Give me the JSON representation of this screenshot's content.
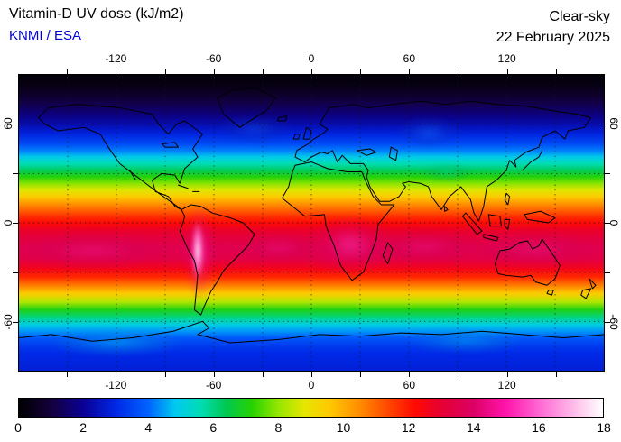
{
  "header": {
    "title": "Vitamin-D UV dose (kJ/m2)",
    "credit": "KNMI / ESA",
    "scene": "Clear-sky",
    "date": "22 February 2025"
  },
  "colors": {
    "credit_blue": "#0000dd",
    "text_black": "#000000",
    "background": "#ffffff"
  },
  "map_axes": {
    "lon_tick_step_deg": 30,
    "lon_labeled_ticks": [
      -120,
      -60,
      0,
      60,
      120
    ],
    "lat_tick_step_deg": 30,
    "lat_labeled_ticks": [
      60,
      0,
      -60
    ]
  },
  "chart_data": {
    "type": "heatmap",
    "title": "Vitamin-D UV dose (kJ/m2)",
    "source": "KNMI / ESA",
    "condition": "Clear-sky",
    "date": "22 February 2025",
    "units": "kJ/m2",
    "projection": "equirectangular",
    "lon_range": [
      -180,
      180
    ],
    "lat_range": [
      -90,
      90
    ],
    "grid_step_deg": 30,
    "colorbar": {
      "min": 0,
      "max": 18,
      "tick_labels": [
        0,
        2,
        4,
        6,
        8,
        10,
        12,
        14,
        16,
        18
      ],
      "stops": [
        {
          "value": 0,
          "color": "#000000"
        },
        {
          "value": 1,
          "color": "#14003c"
        },
        {
          "value": 2,
          "color": "#0a0096"
        },
        {
          "value": 3,
          "color": "#0028e6"
        },
        {
          "value": 4,
          "color": "#0064ff"
        },
        {
          "value": 4.8,
          "color": "#00c8f0"
        },
        {
          "value": 5.6,
          "color": "#00dcb4"
        },
        {
          "value": 6.4,
          "color": "#00c850"
        },
        {
          "value": 7.2,
          "color": "#28d200"
        },
        {
          "value": 8,
          "color": "#96e600"
        },
        {
          "value": 8.8,
          "color": "#e6e600"
        },
        {
          "value": 9.6,
          "color": "#ffc800"
        },
        {
          "value": 10.5,
          "color": "#ff8c00"
        },
        {
          "value": 11.4,
          "color": "#ff4600"
        },
        {
          "value": 12.2,
          "color": "#ff0a00"
        },
        {
          "value": 13,
          "color": "#e60032"
        },
        {
          "value": 14,
          "color": "#dc0064"
        },
        {
          "value": 15,
          "color": "#ff14aa"
        },
        {
          "value": 16,
          "color": "#ff64d2"
        },
        {
          "value": 17,
          "color": "#ffb4e6"
        },
        {
          "value": 18,
          "color": "#ffffff"
        }
      ]
    },
    "zonal_mean_profile": [
      {
        "lat": 90,
        "dose": 0.15
      },
      {
        "lat": 84,
        "dose": 0.3
      },
      {
        "lat": 78,
        "dose": 0.7
      },
      {
        "lat": 72,
        "dose": 1.2
      },
      {
        "lat": 66,
        "dose": 1.7
      },
      {
        "lat": 60,
        "dose": 2.3
      },
      {
        "lat": 54,
        "dose": 2.9
      },
      {
        "lat": 48,
        "dose": 3.6
      },
      {
        "lat": 44,
        "dose": 4.2
      },
      {
        "lat": 40,
        "dose": 4.9
      },
      {
        "lat": 36,
        "dose": 5.6
      },
      {
        "lat": 32,
        "dose": 6.3
      },
      {
        "lat": 28,
        "dose": 7.1
      },
      {
        "lat": 24,
        "dose": 7.9
      },
      {
        "lat": 20,
        "dose": 8.7
      },
      {
        "lat": 16,
        "dose": 9.5
      },
      {
        "lat": 12,
        "dose": 10.3
      },
      {
        "lat": 8,
        "dose": 11.0
      },
      {
        "lat": 4,
        "dose": 11.7
      },
      {
        "lat": 0,
        "dose": 12.3
      },
      {
        "lat": -5,
        "dose": 12.9
      },
      {
        "lat": -10,
        "dose": 13.3
      },
      {
        "lat": -16,
        "dose": 13.6
      },
      {
        "lat": -22,
        "dose": 13.4
      },
      {
        "lat": -28,
        "dose": 12.6
      },
      {
        "lat": -33,
        "dose": 11.8
      },
      {
        "lat": -38,
        "dose": 10.7
      },
      {
        "lat": -43,
        "dose": 9.5
      },
      {
        "lat": -48,
        "dose": 8.3
      },
      {
        "lat": -53,
        "dose": 7.0
      },
      {
        "lat": -58,
        "dose": 5.9
      },
      {
        "lat": -62,
        "dose": 5.0
      },
      {
        "lat": -66,
        "dose": 4.4
      },
      {
        "lat": -70,
        "dose": 3.8
      },
      {
        "lat": -75,
        "dose": 3.3
      },
      {
        "lat": -80,
        "dose": 3.0
      },
      {
        "lat": -85,
        "dose": 2.9
      },
      {
        "lat": -90,
        "dose": 2.8
      }
    ],
    "hotspots": [
      {
        "name": "andes-glow",
        "lon": -69,
        "lat": -18,
        "dose": 15,
        "w": 38,
        "h": 105,
        "core": "#ff3cb490",
        "glow": "#e60a7850"
      },
      {
        "name": "andes-altiplano-peak",
        "lon": -70,
        "lat": -17,
        "dose": 17.5,
        "w": 13,
        "h": 68,
        "core": "#ffffffe0",
        "glow": "#ff82dcb0"
      },
      {
        "name": "southern-africa",
        "lon": 24,
        "lat": -13,
        "dose": 15,
        "w": 95,
        "h": 68,
        "core": "#f028a0a0",
        "glow": "#dc006455"
      },
      {
        "name": "south-pacific-band",
        "lon": -135,
        "lat": -17,
        "dose": 14.5,
        "w": 170,
        "h": 44,
        "core": "#e6148085",
        "glow": "#d2005a4d"
      },
      {
        "name": "south-atlantic-band",
        "lon": -20,
        "lat": -15,
        "dose": 14,
        "w": 90,
        "h": 36,
        "core": "#e6148070",
        "glow": "#d2005a45"
      },
      {
        "name": "indian-ocean-band",
        "lon": 70,
        "lat": -14,
        "dose": 14,
        "w": 120,
        "h": 38,
        "core": "#e6148078",
        "glow": "#d2005a48"
      },
      {
        "name": "north-australia-band",
        "lon": 138,
        "lat": -16,
        "dose": 14.5,
        "w": 130,
        "h": 44,
        "core": "#e6148085",
        "glow": "#d2005a4d"
      },
      {
        "name": "tibet-himalaya",
        "lon": 84,
        "lat": 31,
        "dose": 7.5,
        "w": 56,
        "h": 22,
        "core": "#00d29670",
        "glow": "#00aa6440"
      },
      {
        "name": "central-asia-bright",
        "lon": 72,
        "lat": 55,
        "dose": 3.5,
        "w": 75,
        "h": 36,
        "core": "#1464f080",
        "glow": "#0a32c84d"
      },
      {
        "name": "north-atlantic-bright",
        "lon": -35,
        "lat": 57,
        "dose": 3.2,
        "w": 90,
        "h": 34,
        "core": "#1450e670",
        "glow": "#0a28b445"
      },
      {
        "name": "antarctic-bright-1",
        "lon": -120,
        "lat": -73,
        "dose": 5,
        "w": 150,
        "h": 30,
        "core": "#00c8f07a",
        "glow": "#0090e04d"
      },
      {
        "name": "antarctic-bright-2",
        "lon": 95,
        "lat": -72,
        "dose": 4.5,
        "w": 130,
        "h": 28,
        "core": "#00b4f06e",
        "glow": "#0088dc45"
      }
    ]
  }
}
